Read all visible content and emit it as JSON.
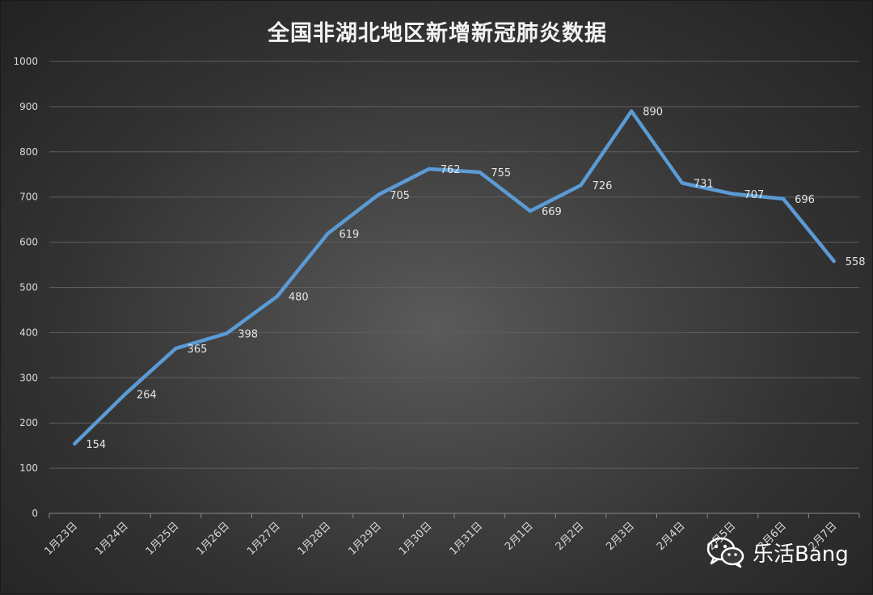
{
  "chart_data": {
    "type": "line",
    "title": "全国非湖北地区新增新冠肺炎数据",
    "categories": [
      "1月23日",
      "1月24日",
      "1月25日",
      "1月26日",
      "1月27日",
      "1月28日",
      "1月29日",
      "1月30日",
      "1月31日",
      "2月1日",
      "2月2日",
      "2月3日",
      "2月4日",
      "2月5日",
      "2月6日",
      "2月7日"
    ],
    "series": [
      {
        "values": [
          154,
          264,
          365,
          398,
          480,
          619,
          705,
          762,
          755,
          669,
          726,
          890,
          731,
          707,
          696,
          558
        ]
      }
    ],
    "ylim": [
      0,
      1000
    ],
    "yticks": [
      0,
      100,
      200,
      300,
      400,
      500,
      600,
      700,
      800,
      900,
      1000
    ],
    "grid": true,
    "line_color": "#5b9bd5",
    "data_labels": true
  },
  "watermark": {
    "text": "乐活Bang",
    "icon": "wechat-icon"
  }
}
